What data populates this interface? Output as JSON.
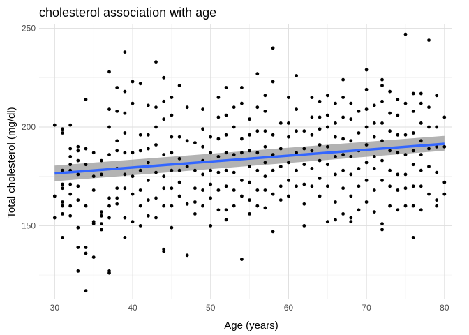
{
  "chart_data": {
    "type": "scatter",
    "title": "cholesterol association with age",
    "xlabel": "Age (years)",
    "ylabel": "Total cholesterol (mg/dl)",
    "xlim": [
      28,
      81
    ],
    "ylim": [
      113,
      252
    ],
    "x_ticks": [
      30,
      40,
      50,
      60,
      70,
      80
    ],
    "y_ticks": [
      150,
      200,
      250
    ],
    "grid": true,
    "colors": {
      "points": "#000000",
      "fit_line": "#3366ff",
      "confidence_band": "#999999",
      "grid_major": "#dedede",
      "grid_minor": "#efefef",
      "background": "#ffffff"
    },
    "fit": {
      "method": "linear",
      "x": [
        30,
        80
      ],
      "y": [
        176.5,
        191.5
      ],
      "ci_lower": [
        172.5,
        188
      ],
      "ci_upper": [
        180.5,
        195.5
      ]
    },
    "points": [
      [
        30,
        201
      ],
      [
        30,
        165
      ],
      [
        30,
        154
      ],
      [
        31,
        197
      ],
      [
        31,
        199
      ],
      [
        31,
        178
      ],
      [
        31,
        171
      ],
      [
        31,
        169
      ],
      [
        31,
        162
      ],
      [
        31,
        160
      ],
      [
        31,
        144
      ],
      [
        31,
        156
      ],
      [
        32,
        201
      ],
      [
        32,
        189
      ],
      [
        32,
        185
      ],
      [
        32,
        181
      ],
      [
        32,
        178
      ],
      [
        32,
        171
      ],
      [
        32,
        166
      ],
      [
        32,
        160
      ],
      [
        32,
        155
      ],
      [
        33,
        190
      ],
      [
        33,
        188
      ],
      [
        33,
        183
      ],
      [
        33,
        176
      ],
      [
        33,
        170
      ],
      [
        33,
        163
      ],
      [
        33,
        149
      ],
      [
        33,
        139
      ],
      [
        33,
        127
      ],
      [
        34,
        214
      ],
      [
        34,
        189
      ],
      [
        34,
        181
      ],
      [
        34,
        160
      ],
      [
        34,
        139
      ],
      [
        34,
        136
      ],
      [
        34,
        117
      ],
      [
        35,
        187
      ],
      [
        35,
        175
      ],
      [
        35,
        168
      ],
      [
        35,
        152
      ],
      [
        35,
        151
      ],
      [
        35,
        134
      ],
      [
        36,
        183
      ],
      [
        36,
        176
      ],
      [
        36,
        157
      ],
      [
        36,
        155
      ],
      [
        36,
        151
      ],
      [
        36,
        148
      ],
      [
        37,
        228
      ],
      [
        37,
        209
      ],
      [
        37,
        200
      ],
      [
        37,
        186
      ],
      [
        37,
        164
      ],
      [
        37,
        160
      ],
      [
        37,
        154
      ],
      [
        37,
        127
      ],
      [
        37,
        126
      ],
      [
        38,
        220
      ],
      [
        38,
        208
      ],
      [
        38,
        193
      ],
      [
        38,
        188
      ],
      [
        38,
        179
      ],
      [
        38,
        169
      ],
      [
        38,
        164
      ],
      [
        38,
        161
      ],
      [
        39,
        238
      ],
      [
        39,
        218
      ],
      [
        39,
        207
      ],
      [
        39,
        197
      ],
      [
        39,
        187
      ],
      [
        39,
        176
      ],
      [
        39,
        169
      ],
      [
        39,
        154
      ],
      [
        39,
        144
      ],
      [
        40,
        223
      ],
      [
        40,
        212
      ],
      [
        40,
        187
      ],
      [
        40,
        175
      ],
      [
        40,
        166
      ],
      [
        40,
        152
      ],
      [
        41,
        222
      ],
      [
        41,
        196
      ],
      [
        41,
        188
      ],
      [
        41,
        178
      ],
      [
        41,
        168
      ],
      [
        41,
        160
      ],
      [
        41,
        150
      ],
      [
        42,
        211
      ],
      [
        42,
        196
      ],
      [
        42,
        189
      ],
      [
        42,
        182
      ],
      [
        42,
        173
      ],
      [
        42,
        163
      ],
      [
        42,
        155
      ],
      [
        43,
        233
      ],
      [
        43,
        210
      ],
      [
        43,
        200
      ],
      [
        43,
        191
      ],
      [
        43,
        177
      ],
      [
        43,
        164
      ],
      [
        43,
        154
      ],
      [
        44,
        225
      ],
      [
        44,
        213
      ],
      [
        44,
        204
      ],
      [
        44,
        186
      ],
      [
        44,
        175
      ],
      [
        44,
        169
      ],
      [
        44,
        160
      ],
      [
        44,
        138
      ],
      [
        44,
        137
      ],
      [
        45,
        215
      ],
      [
        45,
        206
      ],
      [
        45,
        195
      ],
      [
        45,
        187
      ],
      [
        45,
        178
      ],
      [
        45,
        169
      ],
      [
        45,
        160
      ],
      [
        45,
        149
      ],
      [
        46,
        221
      ],
      [
        46,
        195
      ],
      [
        46,
        184
      ],
      [
        46,
        178
      ],
      [
        46,
        172
      ],
      [
        46,
        165
      ],
      [
        47,
        210
      ],
      [
        47,
        193
      ],
      [
        47,
        180
      ],
      [
        47,
        161
      ],
      [
        47,
        135
      ],
      [
        48,
        192
      ],
      [
        48,
        178
      ],
      [
        48,
        169
      ],
      [
        48,
        162
      ],
      [
        48,
        156
      ],
      [
        49,
        209
      ],
      [
        49,
        199
      ],
      [
        49,
        190
      ],
      [
        49,
        183
      ],
      [
        49,
        176
      ],
      [
        49,
        168
      ],
      [
        49,
        160
      ],
      [
        50,
        195
      ],
      [
        50,
        187
      ],
      [
        50,
        178
      ],
      [
        50,
        171
      ],
      [
        50,
        164
      ],
      [
        50,
        150
      ],
      [
        51,
        215
      ],
      [
        51,
        205
      ],
      [
        51,
        194
      ],
      [
        51,
        185
      ],
      [
        51,
        177
      ],
      [
        51,
        168
      ],
      [
        51,
        158
      ],
      [
        52,
        220
      ],
      [
        52,
        206
      ],
      [
        52,
        196
      ],
      [
        52,
        187
      ],
      [
        52,
        178
      ],
      [
        52,
        170
      ],
      [
        52,
        158
      ],
      [
        52,
        153
      ],
      [
        53,
        210
      ],
      [
        53,
        200
      ],
      [
        53,
        186
      ],
      [
        53,
        177
      ],
      [
        53,
        168
      ],
      [
        53,
        160
      ],
      [
        54,
        220
      ],
      [
        54,
        212
      ],
      [
        54,
        194
      ],
      [
        54,
        187
      ],
      [
        54,
        173
      ],
      [
        54,
        165
      ],
      [
        54,
        133
      ],
      [
        55,
        204
      ],
      [
        55,
        196
      ],
      [
        55,
        188
      ],
      [
        55,
        180
      ],
      [
        55,
        172
      ],
      [
        55,
        163
      ],
      [
        55,
        156
      ],
      [
        56,
        227
      ],
      [
        56,
        210
      ],
      [
        56,
        198
      ],
      [
        56,
        187
      ],
      [
        56,
        178
      ],
      [
        56,
        168
      ],
      [
        56,
        160
      ],
      [
        57,
        216
      ],
      [
        57,
        208
      ],
      [
        57,
        198
      ],
      [
        57,
        190
      ],
      [
        57,
        182
      ],
      [
        57,
        175
      ],
      [
        57,
        168
      ],
      [
        57,
        159
      ],
      [
        58,
        240
      ],
      [
        58,
        223
      ],
      [
        58,
        196
      ],
      [
        58,
        186
      ],
      [
        58,
        178
      ],
      [
        58,
        166
      ],
      [
        58,
        147
      ],
      [
        59,
        202
      ],
      [
        59,
        189
      ],
      [
        59,
        180
      ],
      [
        59,
        170
      ],
      [
        59,
        163
      ],
      [
        60,
        215
      ],
      [
        60,
        202
      ],
      [
        60,
        195
      ],
      [
        60,
        182
      ],
      [
        60,
        173
      ],
      [
        60,
        165
      ],
      [
        61,
        226
      ],
      [
        61,
        209
      ],
      [
        61,
        198
      ],
      [
        61,
        187
      ],
      [
        61,
        178
      ],
      [
        61,
        170
      ],
      [
        62,
        198
      ],
      [
        62,
        189
      ],
      [
        62,
        181
      ],
      [
        62,
        171
      ],
      [
        62,
        161
      ],
      [
        62,
        150
      ],
      [
        63,
        215
      ],
      [
        63,
        205
      ],
      [
        63,
        196
      ],
      [
        63,
        188
      ],
      [
        63,
        179
      ],
      [
        63,
        170
      ],
      [
        64,
        213
      ],
      [
        64,
        205
      ],
      [
        64,
        199
      ],
      [
        64,
        191
      ],
      [
        64,
        183
      ],
      [
        64,
        174
      ],
      [
        64,
        165
      ],
      [
        65,
        216
      ],
      [
        65,
        206
      ],
      [
        65,
        200
      ],
      [
        65,
        190
      ],
      [
        65,
        181
      ],
      [
        65,
        170
      ],
      [
        65,
        152
      ],
      [
        66,
        212
      ],
      [
        66,
        202
      ],
      [
        66,
        195
      ],
      [
        66,
        185
      ],
      [
        66,
        176
      ],
      [
        66,
        162
      ],
      [
        66,
        153
      ],
      [
        67,
        224
      ],
      [
        67,
        215
      ],
      [
        67,
        205
      ],
      [
        67,
        194
      ],
      [
        67,
        186
      ],
      [
        67,
        178
      ],
      [
        67,
        169
      ],
      [
        67,
        156
      ],
      [
        68,
        212
      ],
      [
        68,
        204
      ],
      [
        68,
        193
      ],
      [
        68,
        185
      ],
      [
        68,
        176
      ],
      [
        68,
        165
      ],
      [
        68,
        154
      ],
      [
        68,
        152
      ],
      [
        69,
        208
      ],
      [
        69,
        197
      ],
      [
        69,
        188
      ],
      [
        69,
        179
      ],
      [
        69,
        170
      ],
      [
        69,
        158
      ],
      [
        70,
        229
      ],
      [
        70,
        219
      ],
      [
        70,
        209
      ],
      [
        70,
        200
      ],
      [
        70,
        191
      ],
      [
        70,
        182
      ],
      [
        70,
        173
      ],
      [
        70,
        162
      ],
      [
        71,
        211
      ],
      [
        71,
        202
      ],
      [
        71,
        195
      ],
      [
        71,
        185
      ],
      [
        71,
        179
      ],
      [
        71,
        168
      ],
      [
        71,
        157
      ],
      [
        72,
        224
      ],
      [
        72,
        221
      ],
      [
        72,
        213
      ],
      [
        72,
        202
      ],
      [
        72,
        193
      ],
      [
        72,
        183
      ],
      [
        72,
        173
      ],
      [
        72,
        151
      ],
      [
        72,
        148
      ],
      [
        73,
        218
      ],
      [
        73,
        207
      ],
      [
        73,
        198
      ],
      [
        73,
        188
      ],
      [
        73,
        178
      ],
      [
        73,
        170
      ],
      [
        73,
        160
      ],
      [
        74,
        214
      ],
      [
        74,
        206
      ],
      [
        74,
        196
      ],
      [
        74,
        187
      ],
      [
        74,
        176
      ],
      [
        74,
        168
      ],
      [
        74,
        158
      ],
      [
        75,
        247
      ],
      [
        75,
        212
      ],
      [
        75,
        196
      ],
      [
        75,
        186
      ],
      [
        75,
        176
      ],
      [
        75,
        169
      ],
      [
        75,
        160
      ],
      [
        76,
        217
      ],
      [
        76,
        208
      ],
      [
        76,
        197
      ],
      [
        76,
        188
      ],
      [
        76,
        181
      ],
      [
        76,
        170
      ],
      [
        76,
        160
      ],
      [
        76,
        144
      ],
      [
        77,
        217
      ],
      [
        77,
        212
      ],
      [
        77,
        202
      ],
      [
        77,
        193
      ],
      [
        77,
        186
      ],
      [
        77,
        178
      ],
      [
        77,
        170
      ],
      [
        77,
        158
      ],
      [
        78,
        244
      ],
      [
        78,
        210
      ],
      [
        78,
        200
      ],
      [
        78,
        189
      ],
      [
        78,
        180
      ],
      [
        78,
        166
      ],
      [
        79,
        216
      ],
      [
        79,
        200
      ],
      [
        79,
        190
      ],
      [
        79,
        177
      ],
      [
        79,
        163
      ],
      [
        79,
        160
      ],
      [
        80,
        205
      ],
      [
        80,
        190
      ],
      [
        80,
        172
      ],
      [
        80,
        166
      ]
    ]
  }
}
